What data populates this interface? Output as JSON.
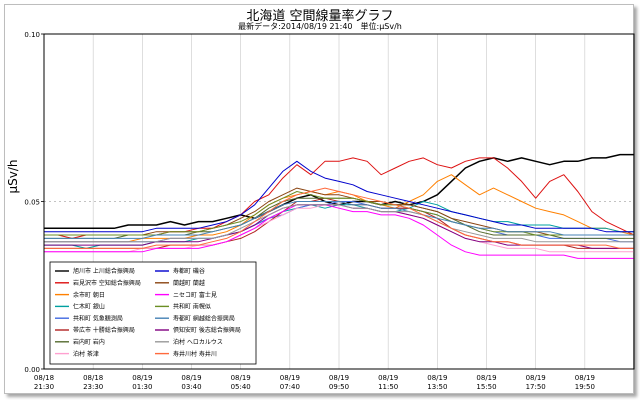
{
  "colors": {
    "frame": "#bdbdbd",
    "axis": "#000000",
    "grid": "#c8c8c8"
  },
  "header": {
    "title": "北海道 空間線量率グラフ",
    "subtitle": "最新データ:2014/08/19 21:40　単位:μSv/h"
  },
  "chart_data": {
    "type": "line",
    "title": "北海道 空間線量率グラフ",
    "subtitle": "最新データ:2014/08/19 21:40　単位:μSv/h",
    "xlabel": "",
    "ylabel": "μSv/h",
    "ylim": [
      0.0,
      0.1
    ],
    "yticks": [
      "0.00",
      "0.05",
      "0.10"
    ],
    "xlim": [
      0,
      25
    ],
    "xticks": [
      "08/18\n21:30",
      "08/18\n23:30",
      "08/19\n01:30",
      "08/19\n03:40",
      "08/19\n05:40",
      "08/19\n07:40",
      "08/19\n09:50",
      "08/19\n11:50",
      "08/19\n13:50",
      "08/19\n15:50",
      "08/19\n17:50",
      "08/19\n19:50"
    ],
    "grid": "vertical",
    "legend_position": "bottom-left inside plot",
    "series": [
      {
        "name": "旭川市 上川総合振興局",
        "color": "#000000",
        "width": 1.5,
        "values": [
          0.042,
          0.042,
          0.042,
          0.042,
          0.042,
          0.042,
          0.043,
          0.043,
          0.043,
          0.044,
          0.043,
          0.044,
          0.044,
          0.045,
          0.046,
          0.045,
          0.047,
          0.049,
          0.051,
          0.052,
          0.05,
          0.049,
          0.05,
          0.05,
          0.049,
          0.05,
          0.049,
          0.05,
          0.052,
          0.056,
          0.06,
          0.062,
          0.063,
          0.062,
          0.063,
          0.062,
          0.061,
          0.062,
          0.062,
          0.063,
          0.063,
          0.064,
          0.064
        ]
      },
      {
        "name": "岩見沢市 空知総合振興局",
        "color": "#dd1111",
        "width": 1,
        "values": [
          0.04,
          0.04,
          0.039,
          0.04,
          0.04,
          0.04,
          0.04,
          0.04,
          0.04,
          0.041,
          0.041,
          0.042,
          0.042,
          0.044,
          0.046,
          0.05,
          0.052,
          0.057,
          0.061,
          0.058,
          0.062,
          0.062,
          0.063,
          0.062,
          0.058,
          0.06,
          0.062,
          0.063,
          0.061,
          0.06,
          0.062,
          0.063,
          0.063,
          0.06,
          0.056,
          0.051,
          0.056,
          0.058,
          0.053,
          0.047,
          0.044,
          0.042,
          0.04
        ]
      },
      {
        "name": "余市町 朝日",
        "color": "#ff8000",
        "width": 1,
        "values": [
          0.038,
          0.038,
          0.038,
          0.038,
          0.038,
          0.038,
          0.038,
          0.039,
          0.039,
          0.039,
          0.039,
          0.04,
          0.04,
          0.041,
          0.043,
          0.046,
          0.049,
          0.051,
          0.052,
          0.053,
          0.052,
          0.053,
          0.052,
          0.05,
          0.049,
          0.048,
          0.05,
          0.052,
          0.056,
          0.058,
          0.055,
          0.052,
          0.054,
          0.052,
          0.05,
          0.048,
          0.047,
          0.046,
          0.044,
          0.042,
          0.042,
          0.041,
          0.04
        ]
      },
      {
        "name": "仁木町 銀山",
        "color": "#00a0a0",
        "width": 1,
        "values": [
          0.037,
          0.037,
          0.037,
          0.036,
          0.037,
          0.037,
          0.037,
          0.037,
          0.038,
          0.038,
          0.038,
          0.039,
          0.039,
          0.04,
          0.041,
          0.043,
          0.045,
          0.047,
          0.048,
          0.049,
          0.048,
          0.049,
          0.049,
          0.048,
          0.047,
          0.047,
          0.048,
          0.05,
          0.049,
          0.047,
          0.046,
          0.045,
          0.044,
          0.044,
          0.043,
          0.043,
          0.043,
          0.042,
          0.042,
          0.042,
          0.042,
          0.041,
          0.041
        ]
      },
      {
        "name": "共和町 気象観測局",
        "color": "#4169e1",
        "width": 1,
        "values": [
          0.038,
          0.038,
          0.038,
          0.038,
          0.038,
          0.038,
          0.038,
          0.038,
          0.038,
          0.039,
          0.039,
          0.039,
          0.039,
          0.04,
          0.041,
          0.043,
          0.045,
          0.046,
          0.048,
          0.049,
          0.049,
          0.05,
          0.05,
          0.049,
          0.048,
          0.048,
          0.048,
          0.047,
          0.046,
          0.044,
          0.043,
          0.042,
          0.041,
          0.04,
          0.04,
          0.04,
          0.039,
          0.039,
          0.039,
          0.039,
          0.039,
          0.038,
          0.038
        ]
      },
      {
        "name": "帯広市 十勝総合振興局",
        "color": "#b22222",
        "width": 1,
        "values": [
          0.036,
          0.036,
          0.036,
          0.036,
          0.036,
          0.036,
          0.036,
          0.036,
          0.036,
          0.037,
          0.037,
          0.037,
          0.037,
          0.038,
          0.039,
          0.041,
          0.044,
          0.047,
          0.05,
          0.05,
          0.051,
          0.05,
          0.049,
          0.049,
          0.048,
          0.048,
          0.048,
          0.047,
          0.045,
          0.042,
          0.04,
          0.039,
          0.038,
          0.038,
          0.037,
          0.037,
          0.037,
          0.037,
          0.036,
          0.036,
          0.036,
          0.036,
          0.036
        ]
      },
      {
        "name": "岩内町 岩内",
        "color": "#556b2f",
        "width": 1,
        "values": [
          0.039,
          0.039,
          0.039,
          0.039,
          0.039,
          0.039,
          0.04,
          0.04,
          0.04,
          0.04,
          0.04,
          0.041,
          0.041,
          0.042,
          0.043,
          0.045,
          0.048,
          0.05,
          0.051,
          0.051,
          0.051,
          0.051,
          0.051,
          0.05,
          0.049,
          0.049,
          0.049,
          0.048,
          0.047,
          0.045,
          0.043,
          0.041,
          0.04,
          0.04,
          0.04,
          0.04,
          0.04,
          0.039,
          0.039,
          0.039,
          0.039,
          0.039,
          0.039
        ]
      },
      {
        "name": "泊村 茶津",
        "color": "#ffa0d0",
        "width": 1,
        "values": [
          0.035,
          0.035,
          0.035,
          0.035,
          0.035,
          0.035,
          0.035,
          0.036,
          0.036,
          0.036,
          0.036,
          0.037,
          0.037,
          0.038,
          0.04,
          0.042,
          0.044,
          0.046,
          0.048,
          0.048,
          0.049,
          0.049,
          0.048,
          0.048,
          0.047,
          0.047,
          0.046,
          0.045,
          0.043,
          0.041,
          0.039,
          0.038,
          0.037,
          0.036,
          0.036,
          0.036,
          0.035,
          0.035,
          0.035,
          0.035,
          0.035,
          0.035,
          0.035
        ]
      },
      {
        "name": "寿都町 磯谷",
        "color": "#0000cc",
        "width": 1,
        "values": [
          0.041,
          0.041,
          0.041,
          0.041,
          0.041,
          0.041,
          0.041,
          0.041,
          0.042,
          0.042,
          0.042,
          0.042,
          0.043,
          0.044,
          0.046,
          0.049,
          0.054,
          0.059,
          0.062,
          0.059,
          0.057,
          0.056,
          0.055,
          0.053,
          0.052,
          0.051,
          0.05,
          0.049,
          0.048,
          0.047,
          0.046,
          0.045,
          0.044,
          0.043,
          0.043,
          0.042,
          0.042,
          0.042,
          0.042,
          0.042,
          0.041,
          0.041,
          0.041
        ]
      },
      {
        "name": "蘭越町 蘭越",
        "color": "#8b4513",
        "width": 1,
        "values": [
          0.04,
          0.04,
          0.04,
          0.04,
          0.04,
          0.04,
          0.04,
          0.04,
          0.041,
          0.041,
          0.041,
          0.041,
          0.042,
          0.043,
          0.045,
          0.047,
          0.05,
          0.052,
          0.054,
          0.053,
          0.052,
          0.052,
          0.051,
          0.05,
          0.05,
          0.049,
          0.049,
          0.048,
          0.047,
          0.045,
          0.044,
          0.043,
          0.042,
          0.041,
          0.041,
          0.041,
          0.04,
          0.04,
          0.04,
          0.04,
          0.04,
          0.04,
          0.04
        ]
      },
      {
        "name": "ニセコ町 富士見",
        "color": "#ff00ff",
        "width": 1,
        "values": [
          0.035,
          0.035,
          0.035,
          0.035,
          0.035,
          0.035,
          0.035,
          0.035,
          0.036,
          0.036,
          0.036,
          0.036,
          0.037,
          0.038,
          0.04,
          0.042,
          0.045,
          0.047,
          0.049,
          0.049,
          0.049,
          0.048,
          0.047,
          0.047,
          0.046,
          0.046,
          0.045,
          0.043,
          0.04,
          0.037,
          0.035,
          0.034,
          0.034,
          0.034,
          0.034,
          0.034,
          0.034,
          0.034,
          0.033,
          0.033,
          0.033,
          0.033,
          0.033
        ]
      },
      {
        "name": "共和町 南幌似",
        "color": "#6b8e23",
        "width": 1,
        "values": [
          0.04,
          0.04,
          0.04,
          0.04,
          0.04,
          0.04,
          0.04,
          0.04,
          0.04,
          0.041,
          0.041,
          0.041,
          0.042,
          0.043,
          0.044,
          0.046,
          0.049,
          0.051,
          0.053,
          0.052,
          0.051,
          0.051,
          0.051,
          0.05,
          0.049,
          0.049,
          0.048,
          0.047,
          0.046,
          0.044,
          0.043,
          0.042,
          0.041,
          0.041,
          0.041,
          0.04,
          0.04,
          0.04,
          0.04,
          0.04,
          0.04,
          0.04,
          0.04
        ]
      },
      {
        "name": "寿都町 網越総合振興局",
        "color": "#4682b4",
        "width": 1,
        "values": [
          0.039,
          0.039,
          0.039,
          0.039,
          0.039,
          0.039,
          0.039,
          0.039,
          0.04,
          0.04,
          0.04,
          0.04,
          0.041,
          0.042,
          0.043,
          0.045,
          0.047,
          0.049,
          0.05,
          0.05,
          0.05,
          0.05,
          0.049,
          0.049,
          0.048,
          0.048,
          0.047,
          0.046,
          0.045,
          0.044,
          0.043,
          0.042,
          0.042,
          0.041,
          0.041,
          0.041,
          0.041,
          0.04,
          0.04,
          0.04,
          0.04,
          0.04,
          0.04
        ]
      },
      {
        "name": "倶知安町 後志総合振興局",
        "color": "#800080",
        "width": 1,
        "values": [
          0.037,
          0.037,
          0.037,
          0.037,
          0.037,
          0.037,
          0.037,
          0.037,
          0.038,
          0.038,
          0.038,
          0.038,
          0.039,
          0.04,
          0.041,
          0.043,
          0.046,
          0.048,
          0.049,
          0.049,
          0.049,
          0.049,
          0.048,
          0.048,
          0.047,
          0.047,
          0.046,
          0.045,
          0.043,
          0.041,
          0.039,
          0.038,
          0.038,
          0.037,
          0.037,
          0.037,
          0.037,
          0.037,
          0.037,
          0.036,
          0.036,
          0.036,
          0.036
        ]
      },
      {
        "name": "泊村 ヘロカルウス",
        "color": "#999999",
        "width": 1,
        "values": [
          0.038,
          0.038,
          0.038,
          0.038,
          0.038,
          0.038,
          0.038,
          0.038,
          0.038,
          0.039,
          0.039,
          0.039,
          0.039,
          0.04,
          0.042,
          0.044,
          0.046,
          0.048,
          0.049,
          0.049,
          0.049,
          0.049,
          0.048,
          0.048,
          0.047,
          0.047,
          0.047,
          0.046,
          0.044,
          0.042,
          0.041,
          0.04,
          0.039,
          0.039,
          0.039,
          0.038,
          0.038,
          0.038,
          0.038,
          0.038,
          0.038,
          0.038,
          0.038
        ]
      },
      {
        "name": "寿井川村 寿井川",
        "color": "#ff6a3d",
        "width": 1,
        "values": [
          0.036,
          0.036,
          0.036,
          0.036,
          0.036,
          0.036,
          0.036,
          0.036,
          0.037,
          0.037,
          0.037,
          0.037,
          0.038,
          0.039,
          0.041,
          0.044,
          0.047,
          0.05,
          0.052,
          0.053,
          0.054,
          0.053,
          0.052,
          0.051,
          0.05,
          0.049,
          0.048,
          0.046,
          0.044,
          0.042,
          0.04,
          0.039,
          0.038,
          0.038,
          0.037,
          0.037,
          0.037,
          0.037,
          0.037,
          0.037,
          0.037,
          0.036,
          0.036
        ]
      }
    ]
  }
}
